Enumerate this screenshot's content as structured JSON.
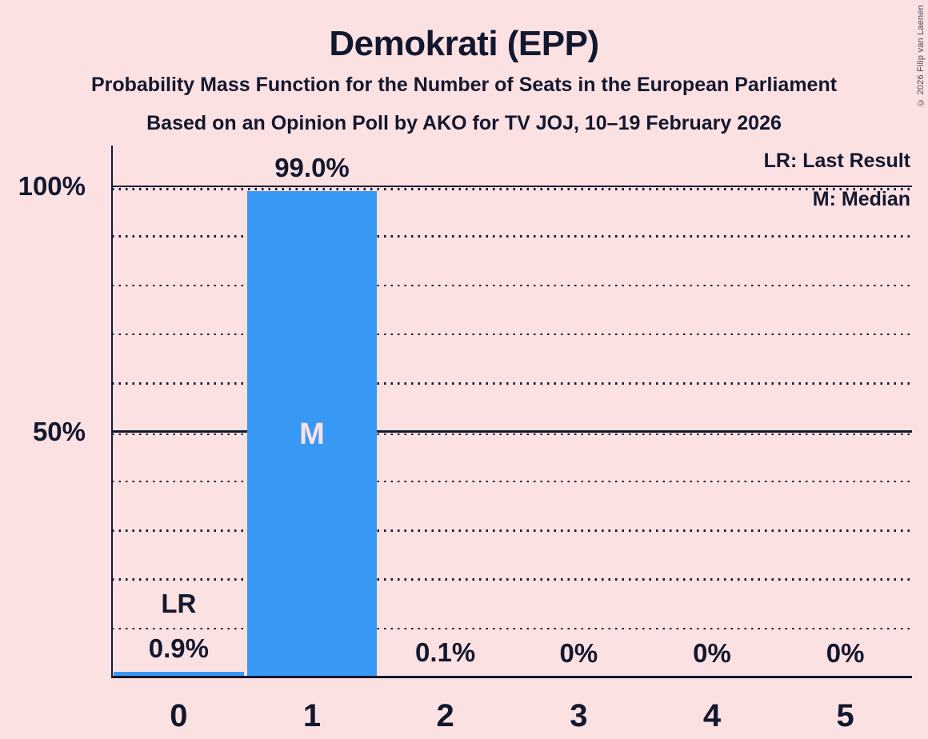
{
  "page": {
    "title": "Demokrati (EPP)",
    "subtitle_line1": "Probability Mass Function for the Number of Seats in the European Parliament",
    "subtitle_line2": "Based on an Opinion Poll by AKO for TV JOJ, 10–19 February 2026",
    "copyright": "© 2026 Filip van Laenen"
  },
  "legend": {
    "last_result": "LR: Last Result",
    "median": "M: Median"
  },
  "colors": {
    "background": "#fce1e3",
    "bar": "#3899f5",
    "ink": "#13182f",
    "median_label_on_bar": "#fce1e3"
  },
  "chart_data": {
    "type": "bar",
    "title": "Demokrati (EPP)",
    "categories": [
      "0",
      "1",
      "2",
      "3",
      "4",
      "5"
    ],
    "values": [
      0.9,
      99.0,
      0.1,
      0,
      0,
      0
    ],
    "value_labels": [
      "0.9%",
      "99.0%",
      "0.1%",
      "0%",
      "0%",
      "0%"
    ],
    "y_axis": {
      "ylim": [
        0,
        100
      ],
      "ticks": [
        {
          "value": 100,
          "label": "100%"
        },
        {
          "value": 50,
          "label": "50%"
        }
      ],
      "gridlines": "dotted every 10%, solid lines at 50% and 100%"
    },
    "annotations": {
      "last_result": {
        "category_index": 0,
        "label": "LR"
      },
      "median": {
        "category_index": 1,
        "label": "M"
      }
    },
    "legend_position": "top-right"
  }
}
